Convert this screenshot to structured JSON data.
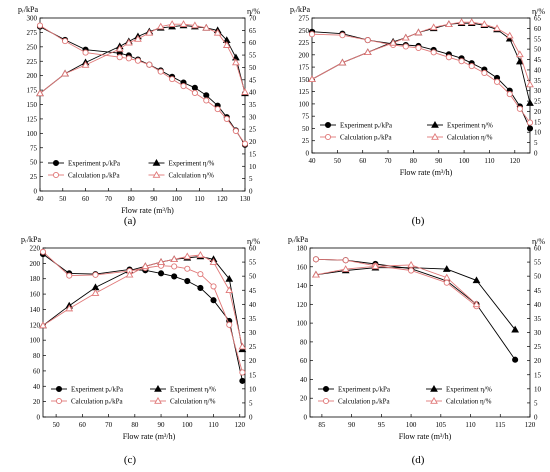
{
  "chart_data": [
    {
      "type": "line",
      "panel_label": "(a)",
      "xlabel": "Flow rate (m³/h)",
      "ylabel_left": "pᵣ/kPa",
      "ylabel_right": "η/%",
      "xlim": [
        40,
        130
      ],
      "xticks": [
        40,
        50,
        60,
        70,
        80,
        90,
        100,
        110,
        120,
        130
      ],
      "ylim_left": [
        0,
        300
      ],
      "yticks_left": [
        0,
        25,
        50,
        75,
        100,
        125,
        150,
        175,
        200,
        225,
        250,
        275,
        300
      ],
      "ylim_right": [
        0,
        70
      ],
      "yticks_right": [
        0,
        5,
        10,
        15,
        20,
        25,
        30,
        35,
        40,
        45,
        50,
        55,
        60,
        65,
        70
      ],
      "legend": [
        "Experiment pᵣ/kPa",
        "Experiment η/%",
        "Calculation pᵣ/kPa",
        "Calculation η/%"
      ],
      "series": [
        {
          "name": "Experiment pᵣ/kPa",
          "axis": "left",
          "marker": "circle-filled",
          "color": "#000000",
          "x": [
            40,
            51,
            60,
            75,
            79,
            83,
            88,
            93,
            98,
            103,
            108,
            113,
            118,
            122,
            126,
            130
          ],
          "y": [
            285,
            262,
            245,
            239,
            235,
            228,
            219,
            209,
            198,
            188,
            179,
            166,
            148,
            128,
            105,
            80
          ]
        },
        {
          "name": "Experiment η/%",
          "axis": "right",
          "marker": "triangle-filled",
          "color": "#000000",
          "x": [
            40,
            51,
            60,
            75,
            79,
            83,
            88,
            93,
            98,
            103,
            108,
            113,
            118,
            122,
            126,
            130
          ],
          "y": [
            39.5,
            47.5,
            52,
            58.5,
            60.5,
            62.5,
            64.5,
            66,
            66.5,
            67,
            66.5,
            66,
            65,
            61,
            54,
            39.5
          ]
        },
        {
          "name": "Calculation pᵣ/kPa",
          "axis": "left",
          "marker": "circle-open",
          "color": "#e07878",
          "x": [
            40,
            51,
            60,
            75,
            79,
            83,
            88,
            93,
            98,
            103,
            108,
            113,
            118,
            122,
            126,
            130
          ],
          "y": [
            287,
            260,
            240,
            232,
            230,
            226,
            219,
            207,
            194,
            182,
            170,
            157,
            142,
            125,
            104,
            82
          ]
        },
        {
          "name": "Calculation η/%",
          "axis": "right",
          "marker": "triangle-open",
          "color": "#e07878",
          "x": [
            40,
            51,
            60,
            75,
            79,
            83,
            88,
            93,
            98,
            103,
            108,
            113,
            118,
            122,
            126,
            130
          ],
          "y": [
            39.5,
            47.5,
            51,
            57.5,
            60,
            61.5,
            64,
            66.5,
            67.5,
            67.5,
            67,
            66,
            64,
            59,
            52,
            40
          ]
        }
      ]
    },
    {
      "type": "line",
      "panel_label": "(b)",
      "xlabel": "Flow rate (m³/h)",
      "ylabel_left": "pᵣ/kPa",
      "ylabel_right": "η/%",
      "xlim": [
        40,
        126
      ],
      "xticks": [
        40,
        50,
        60,
        70,
        80,
        90,
        100,
        110,
        120
      ],
      "ylim_left": [
        0,
        275
      ],
      "yticks_left": [
        0,
        25,
        50,
        75,
        100,
        125,
        150,
        175,
        200,
        225,
        250,
        275
      ],
      "ylim_right": [
        0,
        65
      ],
      "yticks_right": [
        0,
        5,
        10,
        15,
        20,
        25,
        30,
        35,
        40,
        45,
        50,
        55,
        60,
        65
      ],
      "legend": [
        "Experiment pᵣ/kPa",
        "Experiment η/%",
        "Calculation pᵣ/kPa",
        "Calculation η/%"
      ],
      "series": [
        {
          "name": "Experiment pᵣ/kPa",
          "axis": "left",
          "marker": "circle-filled",
          "color": "#000000",
          "x": [
            40,
            52,
            62,
            72,
            77,
            82,
            88,
            94,
            99,
            103,
            108,
            113,
            118,
            122,
            126
          ],
          "y": [
            247,
            243,
            230,
            222,
            220,
            218,
            210,
            201,
            193,
            183,
            170,
            153,
            127,
            95,
            50
          ]
        },
        {
          "name": "Experiment η/%",
          "axis": "right",
          "marker": "triangle-filled",
          "color": "#000000",
          "x": [
            40,
            52,
            62,
            72,
            77,
            82,
            88,
            94,
            99,
            103,
            108,
            113,
            118,
            122,
            126
          ],
          "y": [
            35.5,
            43.5,
            48.5,
            53.5,
            55.5,
            58,
            60,
            62,
            62.5,
            62.5,
            61.5,
            59.5,
            55,
            44,
            24
          ]
        },
        {
          "name": "Calculation pᵣ/kPa",
          "axis": "left",
          "marker": "circle-open",
          "color": "#e07878",
          "x": [
            40,
            52,
            62,
            72,
            77,
            82,
            88,
            94,
            99,
            103,
            108,
            113,
            118,
            122,
            126
          ],
          "y": [
            242,
            240,
            230,
            220,
            217,
            214,
            205,
            195,
            187,
            177,
            163,
            145,
            120,
            90,
            62
          ]
        },
        {
          "name": "Calculation η/%",
          "axis": "right",
          "marker": "triangle-open",
          "color": "#e07878",
          "x": [
            40,
            52,
            62,
            72,
            77,
            82,
            88,
            94,
            99,
            103,
            108,
            113,
            118,
            122,
            126
          ],
          "y": [
            35.5,
            43.5,
            48.5,
            53,
            55.5,
            58,
            60.5,
            62,
            63,
            63,
            62,
            60,
            56.5,
            47.5,
            33
          ]
        }
      ]
    },
    {
      "type": "line",
      "panel_label": "(c)",
      "xlabel": "Flow rate (m³/h)",
      "ylabel_left": "pᵣ/kPa",
      "ylabel_right": "η/%",
      "xlim": [
        45,
        122
      ],
      "xticks": [
        50,
        60,
        70,
        80,
        90,
        100,
        110,
        120
      ],
      "ylim_left": [
        0,
        220
      ],
      "yticks_left": [
        0,
        20,
        40,
        60,
        80,
        100,
        120,
        140,
        160,
        180,
        200,
        220
      ],
      "ylim_right": [
        0,
        60
      ],
      "yticks_right": [
        0,
        5,
        10,
        15,
        20,
        25,
        30,
        35,
        40,
        45,
        50,
        55,
        60
      ],
      "legend": [
        "Experiment pᵣ/kPa",
        "Experiment η/%",
        "Calculation pᵣ/kPa",
        "Calculation η/%"
      ],
      "series": [
        {
          "name": "Experiment pᵣ/kPa",
          "axis": "left",
          "marker": "circle-filled",
          "color": "#000000",
          "x": [
            45,
            55,
            65,
            78,
            84,
            90,
            95,
            100,
            105,
            110,
            116,
            121
          ],
          "y": [
            212,
            187,
            186,
            192,
            191,
            187,
            183,
            177,
            168,
            152,
            125,
            47
          ]
        },
        {
          "name": "Experiment η/%",
          "axis": "right",
          "marker": "triangle-filled",
          "color": "#000000",
          "x": [
            45,
            55,
            65,
            78,
            84,
            90,
            95,
            100,
            105,
            110,
            116,
            121
          ],
          "y": [
            32.5,
            39.5,
            46,
            52,
            53.5,
            55,
            56,
            56.5,
            57,
            56,
            49,
            24
          ]
        },
        {
          "name": "Calculation pᵣ/kPa",
          "axis": "left",
          "marker": "circle-open",
          "color": "#e07878",
          "x": [
            45,
            55,
            65,
            78,
            84,
            90,
            95,
            100,
            105,
            110,
            116,
            121
          ],
          "y": [
            215,
            184,
            185,
            190,
            194,
            197,
            196,
            193,
            186,
            170,
            120,
            58
          ]
        },
        {
          "name": "Calculation η/%",
          "axis": "right",
          "marker": "triangle-open",
          "color": "#e07878",
          "x": [
            45,
            55,
            65,
            78,
            84,
            90,
            95,
            100,
            105,
            110,
            116,
            121
          ],
          "y": [
            32.5,
            38.5,
            44,
            50.5,
            53.5,
            55,
            56,
            57,
            57.5,
            55,
            45,
            25
          ]
        }
      ]
    },
    {
      "type": "line",
      "panel_label": "(d)",
      "xlabel": "Flow rate (m³/h)",
      "ylabel_left": "pᵣ/kPa",
      "ylabel_right": "η/%",
      "xlim": [
        83,
        120
      ],
      "xticks": [
        85,
        90,
        95,
        100,
        105,
        110,
        115,
        120
      ],
      "ylim_left": [
        0,
        180
      ],
      "yticks_left": [
        0,
        20,
        40,
        60,
        80,
        100,
        120,
        140,
        160,
        180
      ],
      "ylim_right": [
        0,
        60
      ],
      "yticks_right": [
        0,
        5,
        10,
        15,
        20,
        25,
        30,
        35,
        40,
        45,
        50,
        55,
        60
      ],
      "legend": [
        "Experiment pᵣ/kPa",
        "Experiment η/%",
        "Calculation pᵣ/kPa",
        "Calculation η/%"
      ],
      "series": [
        {
          "name": "Experiment pᵣ/kPa",
          "axis": "left",
          "marker": "circle-filled",
          "color": "#000000",
          "x": [
            84,
            89,
            94,
            100,
            106,
            111,
            117.5
          ],
          "y": [
            168,
            167,
            163,
            158,
            145,
            120,
            61
          ]
        },
        {
          "name": "Experiment η/%",
          "axis": "right",
          "marker": "triangle-filled",
          "color": "#000000",
          "x": [
            84,
            89,
            94,
            100,
            106,
            111,
            117.5
          ],
          "y": [
            50.5,
            52,
            53,
            53,
            52.5,
            48.5,
            31
          ]
        },
        {
          "name": "Calculation pᵣ/kPa",
          "axis": "left",
          "marker": "circle-open",
          "color": "#e07878",
          "x": [
            84,
            89,
            94,
            100,
            106,
            111
          ],
          "y": [
            168,
            167,
            161,
            156,
            143,
            118
          ]
        },
        {
          "name": "Calculation η/%",
          "axis": "right",
          "marker": "triangle-open",
          "color": "#e07878",
          "x": [
            84,
            89,
            94,
            100,
            106,
            111
          ],
          "y": [
            50.5,
            52.5,
            53.5,
            54,
            49.5,
            40
          ]
        }
      ]
    }
  ]
}
